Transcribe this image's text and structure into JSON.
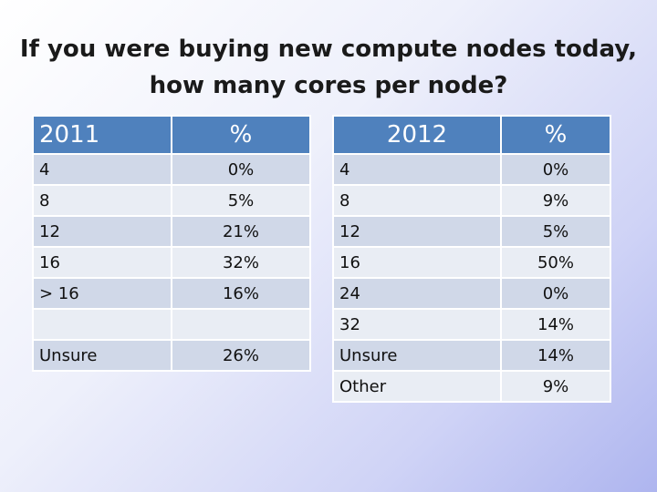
{
  "title": "If you were buying new compute nodes today,\nhow many cores per node?",
  "table_2011": {
    "header": [
      "2011",
      "%"
    ],
    "rows": [
      [
        "4",
        "0%"
      ],
      [
        "8",
        "5%"
      ],
      [
        "12",
        "21%"
      ],
      [
        "16",
        "32%"
      ],
      [
        "> 16",
        "16%"
      ],
      [
        "",
        ""
      ],
      [
        "Unsure",
        "26%"
      ]
    ]
  },
  "table_2012": {
    "header": [
      "2012",
      "%"
    ],
    "rows": [
      [
        "4",
        "0%"
      ],
      [
        "8",
        "9%"
      ],
      [
        "12",
        "5%"
      ],
      [
        "16",
        "50%"
      ],
      [
        "24",
        "0%"
      ],
      [
        "32",
        "14%"
      ],
      [
        "Unsure",
        "14%"
      ],
      [
        "Other",
        "9%"
      ]
    ]
  },
  "colors": {
    "header": "#4f81bd",
    "row_alt": "#d0d8e8",
    "row_plain": "#e9edf4"
  }
}
